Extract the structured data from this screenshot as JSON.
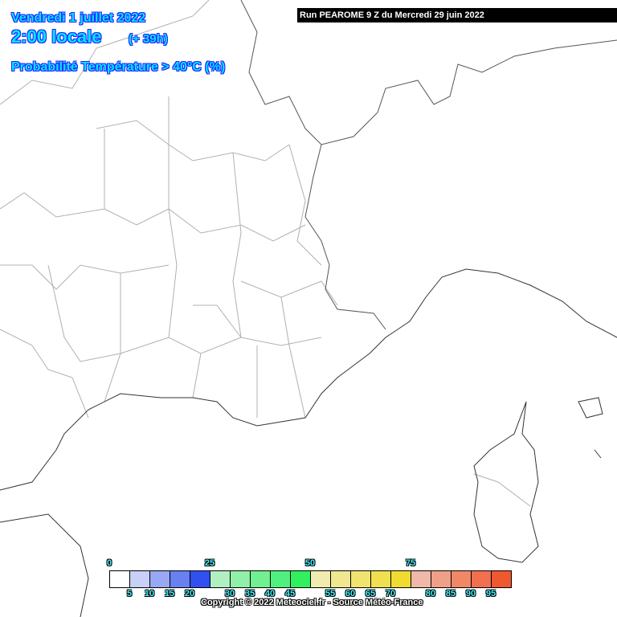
{
  "header": {
    "date": "Vendredi 1 juillet 2022",
    "time": "2:00 locale",
    "lead": "(+ 39h)",
    "parameter": "Probabilité Température > 40°C (%)",
    "run": "Run PEAROME 9 Z du Mercredi 29 juin 2022"
  },
  "legend": {
    "unit": "%",
    "colors": [
      "#ffffff",
      "#c8d0f8",
      "#98a8f4",
      "#6880f0",
      "#3050f0",
      "#b0f0c0",
      "#90f0a8",
      "#70f090",
      "#50f080",
      "#30f060",
      "#f0ecb0",
      "#f0e890",
      "#f0e470",
      "#f0e050",
      "#f0dc30",
      "#f0b8a8",
      "#f0a088",
      "#f08868",
      "#f07050",
      "#f05830"
    ],
    "top_labels": [
      "0",
      "25",
      "50",
      "75"
    ],
    "bottom_labels": [
      "5",
      "10",
      "15",
      "20",
      "30",
      "35",
      "40",
      "45",
      "55",
      "60",
      "65",
      "70",
      "80",
      "85",
      "90",
      "95"
    ]
  },
  "map": {
    "region": "Sud-Est France / Corse",
    "border_color": "#a0a0a0",
    "coast_color": "#404040"
  },
  "footer": {
    "copyright": "Copyright © 2022 Meteociel.fr - Source Météo-France"
  }
}
